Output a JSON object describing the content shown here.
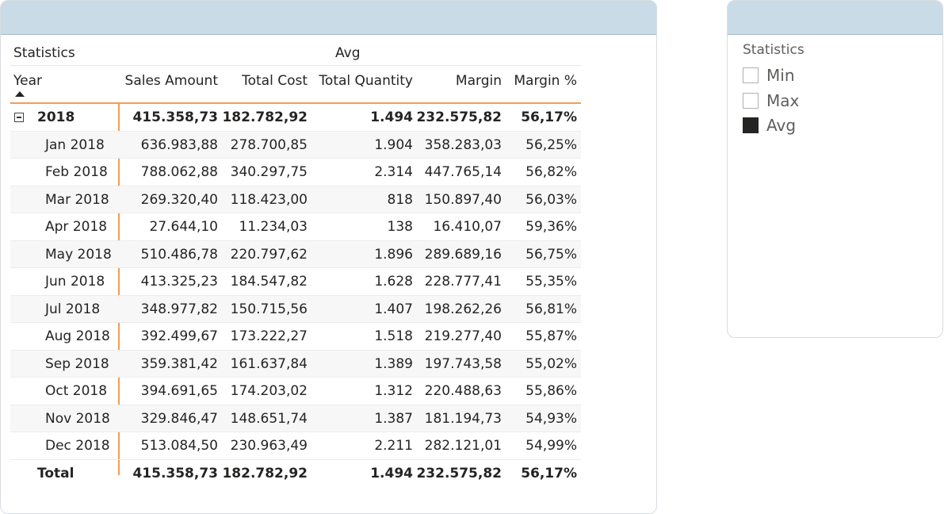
{
  "matrix": {
    "header": {
      "row_field": "Statistics",
      "column_value": "Avg",
      "row_header": "Year",
      "columns": [
        "Sales Amount",
        "Total Cost",
        "Total Quantity",
        "Margin",
        "Margin %"
      ]
    },
    "year_row": {
      "label": "2018",
      "values": [
        "415.358,73",
        "182.782,92",
        "1.494",
        "232.575,82",
        "56,17%"
      ]
    },
    "rows": [
      {
        "label": "Jan 2018",
        "values": [
          "636.983,88",
          "278.700,85",
          "1.904",
          "358.283,03",
          "56,25%"
        ]
      },
      {
        "label": "Feb 2018",
        "values": [
          "788.062,88",
          "340.297,75",
          "2.314",
          "447.765,14",
          "56,82%"
        ]
      },
      {
        "label": "Mar 2018",
        "values": [
          "269.320,40",
          "118.423,00",
          "818",
          "150.897,40",
          "56,03%"
        ]
      },
      {
        "label": "Apr 2018",
        "values": [
          "27.644,10",
          "11.234,03",
          "138",
          "16.410,07",
          "59,36%"
        ]
      },
      {
        "label": "May 2018",
        "values": [
          "510.486,78",
          "220.797,62",
          "1.896",
          "289.689,16",
          "56,75%"
        ]
      },
      {
        "label": "Jun 2018",
        "values": [
          "413.325,23",
          "184.547,82",
          "1.628",
          "228.777,41",
          "55,35%"
        ]
      },
      {
        "label": "Jul 2018",
        "values": [
          "348.977,82",
          "150.715,56",
          "1.407",
          "198.262,26",
          "56,81%"
        ]
      },
      {
        "label": "Aug 2018",
        "values": [
          "392.499,67",
          "173.222,27",
          "1.518",
          "219.277,40",
          "55,87%"
        ]
      },
      {
        "label": "Sep 2018",
        "values": [
          "359.381,42",
          "161.637,84",
          "1.389",
          "197.743,58",
          "55,02%"
        ]
      },
      {
        "label": "Oct 2018",
        "values": [
          "394.691,65",
          "174.203,02",
          "1.312",
          "220.488,63",
          "55,86%"
        ]
      },
      {
        "label": "Nov 2018",
        "values": [
          "329.846,47",
          "148.651,74",
          "1.387",
          "181.194,73",
          "54,93%"
        ]
      },
      {
        "label": "Dec 2018",
        "values": [
          "513.084,50",
          "230.963,49",
          "2.211",
          "282.121,01",
          "54,99%"
        ]
      }
    ],
    "total_row": {
      "label": "Total",
      "values": [
        "415.358,73",
        "182.782,92",
        "1.494",
        "232.575,82",
        "56,17%"
      ]
    }
  },
  "slicer": {
    "title": "Statistics",
    "options": [
      {
        "label": "Min",
        "checked": false
      },
      {
        "label": "Max",
        "checked": false
      },
      {
        "label": "Avg",
        "checked": true
      }
    ]
  },
  "colors": {
    "header_band": "#c9dbe6",
    "accent_line": "#f29c55",
    "checked_box": "#252423"
  }
}
